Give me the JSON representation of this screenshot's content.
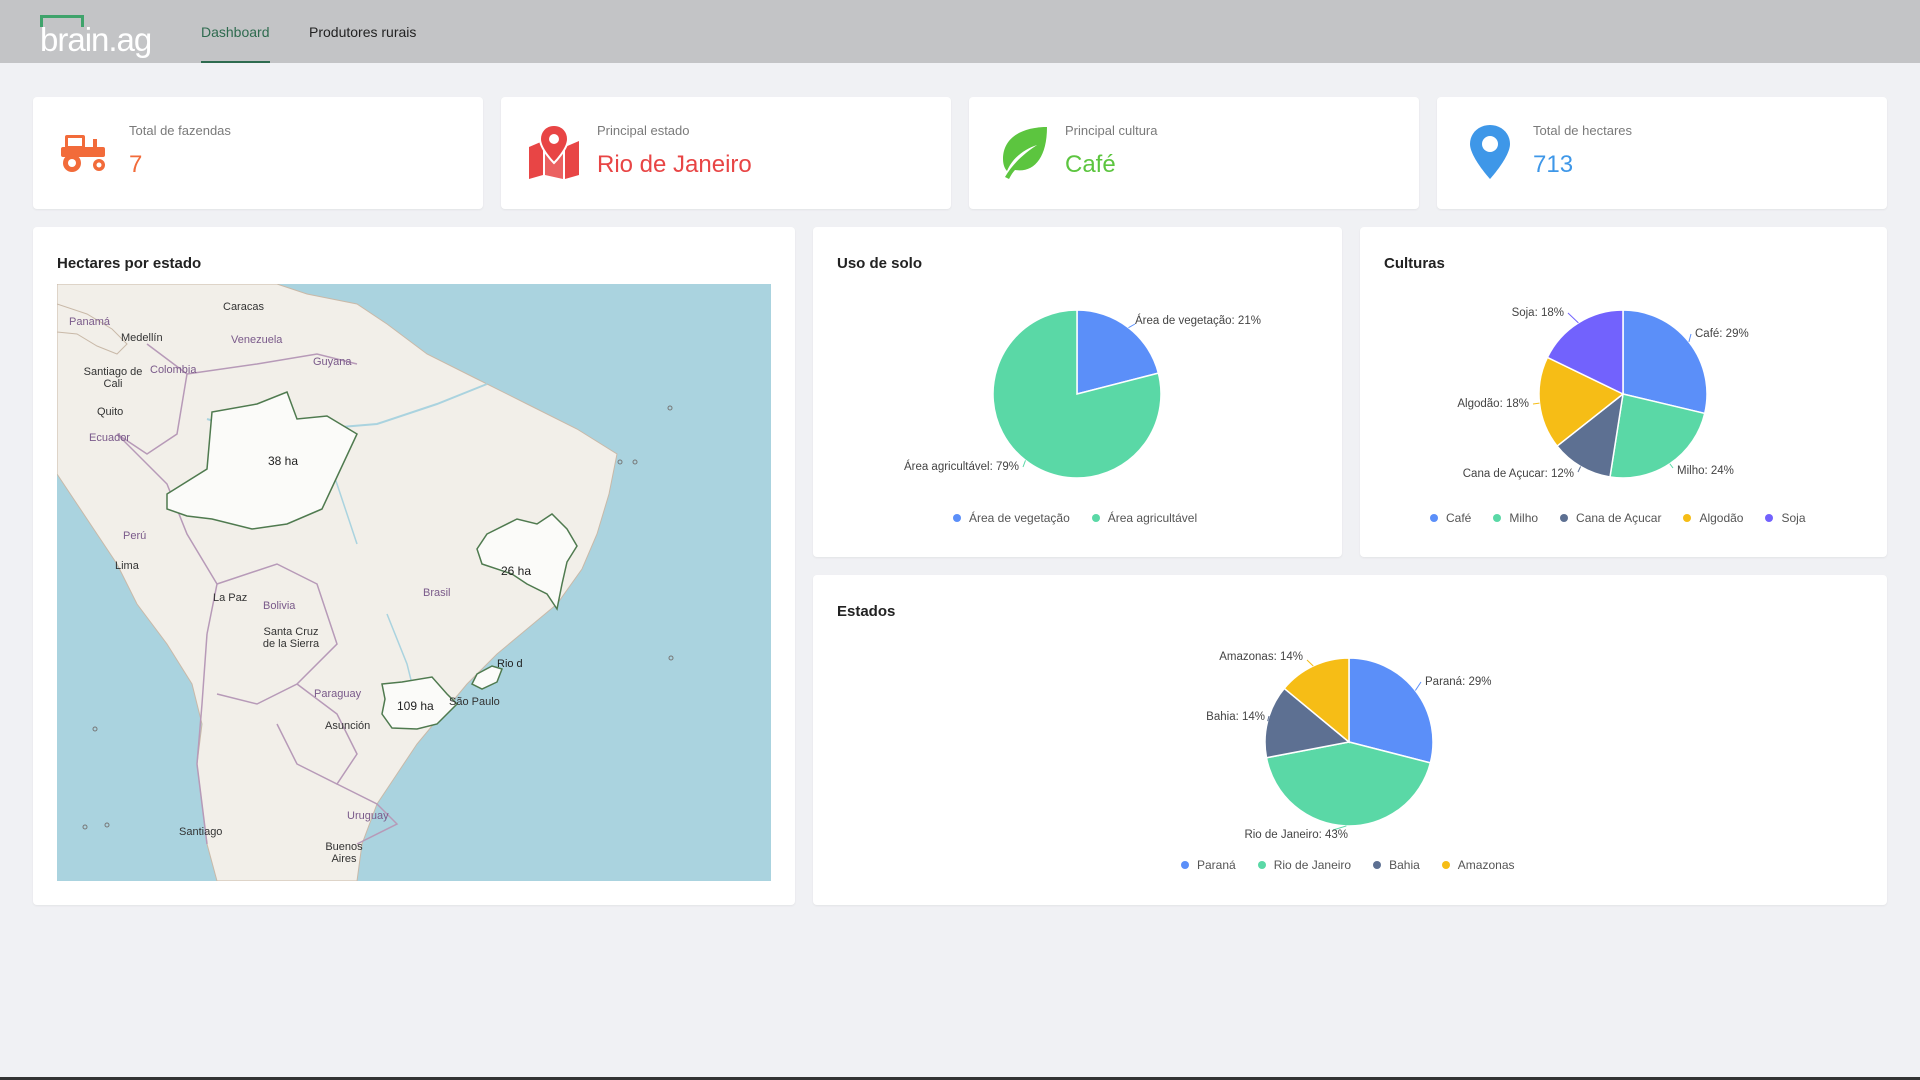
{
  "header": {
    "logo_text": "brain.ag",
    "nav": [
      {
        "label": "Dashboard",
        "active": true
      },
      {
        "label": "Produtores rurais",
        "active": false
      }
    ]
  },
  "stats": [
    {
      "label": "Total de fazendas",
      "value": "7",
      "icon": "tractor-icon",
      "color": "#f26b3a"
    },
    {
      "label": "Principal estado",
      "value": "Rio de Janeiro",
      "icon": "map-pin-icon",
      "color": "#e84545"
    },
    {
      "label": "Principal cultura",
      "value": "Café",
      "icon": "leaf-icon",
      "color": "#5cc53f"
    },
    {
      "label": "Total de hectares",
      "value": "713",
      "icon": "location-pin-icon",
      "color": "#3e97e8"
    }
  ],
  "map_panel": {
    "title": "Hectares por estado",
    "state_labels": [
      "38 ha",
      "26 ha",
      "109 ha",
      "Rio d"
    ],
    "places": [
      "Caracas",
      "Panamá",
      "Medellín",
      "Venezuela",
      "Guyana",
      "Santiago de Cali",
      "Colombia",
      "Quito",
      "Ecuador",
      "Perú",
      "Lima",
      "La Paz",
      "Bolivia",
      "Santa Cruz de la Sierra",
      "Brasil",
      "Paraguay",
      "Asunción",
      "São Paulo",
      "Uruguay",
      "Santiago",
      "Buenos Aires"
    ]
  },
  "soil_panel": {
    "title": "Uso de solo",
    "chart_data": {
      "type": "pie",
      "series": [
        {
          "name": "Área de vegetação",
          "value": 21,
          "label": "Área de vegetação: 21%",
          "color": "#5b8ff9"
        },
        {
          "name": "Área agricultável",
          "value": 79,
          "label": "Área agricultável: 79%",
          "color": "#5ad8a6"
        }
      ],
      "legend": "bottom"
    }
  },
  "crops_panel": {
    "title": "Culturas",
    "chart_data": {
      "type": "pie",
      "series": [
        {
          "name": "Café",
          "value": 29,
          "label": "Café: 29%",
          "color": "#5b8ff9"
        },
        {
          "name": "Milho",
          "value": 24,
          "label": "Milho: 24%",
          "color": "#5ad8a6"
        },
        {
          "name": "Cana de Açucar",
          "value": 12,
          "label": "Cana de Açucar: 12%",
          "color": "#5d7092"
        },
        {
          "name": "Algodão",
          "value": 18,
          "label": "Algodão: 18%",
          "color": "#f6bd16"
        },
        {
          "name": "Soja",
          "value": 18,
          "label": "Soja: 18%",
          "color": "#7262fd"
        }
      ],
      "legend": "bottom"
    }
  },
  "states_panel": {
    "title": "Estados",
    "chart_data": {
      "type": "pie",
      "series": [
        {
          "name": "Paraná",
          "value": 29,
          "label": "Paraná: 29%",
          "color": "#5b8ff9"
        },
        {
          "name": "Rio de Janeiro",
          "value": 43,
          "label": "Rio de Janeiro: 43%",
          "color": "#5ad8a6"
        },
        {
          "name": "Bahia",
          "value": 14,
          "label": "Bahia: 14%",
          "color": "#5d7092"
        },
        {
          "name": "Amazonas",
          "value": 14,
          "label": "Amazonas: 14%",
          "color": "#f6bd16"
        }
      ],
      "legend": "bottom"
    }
  }
}
